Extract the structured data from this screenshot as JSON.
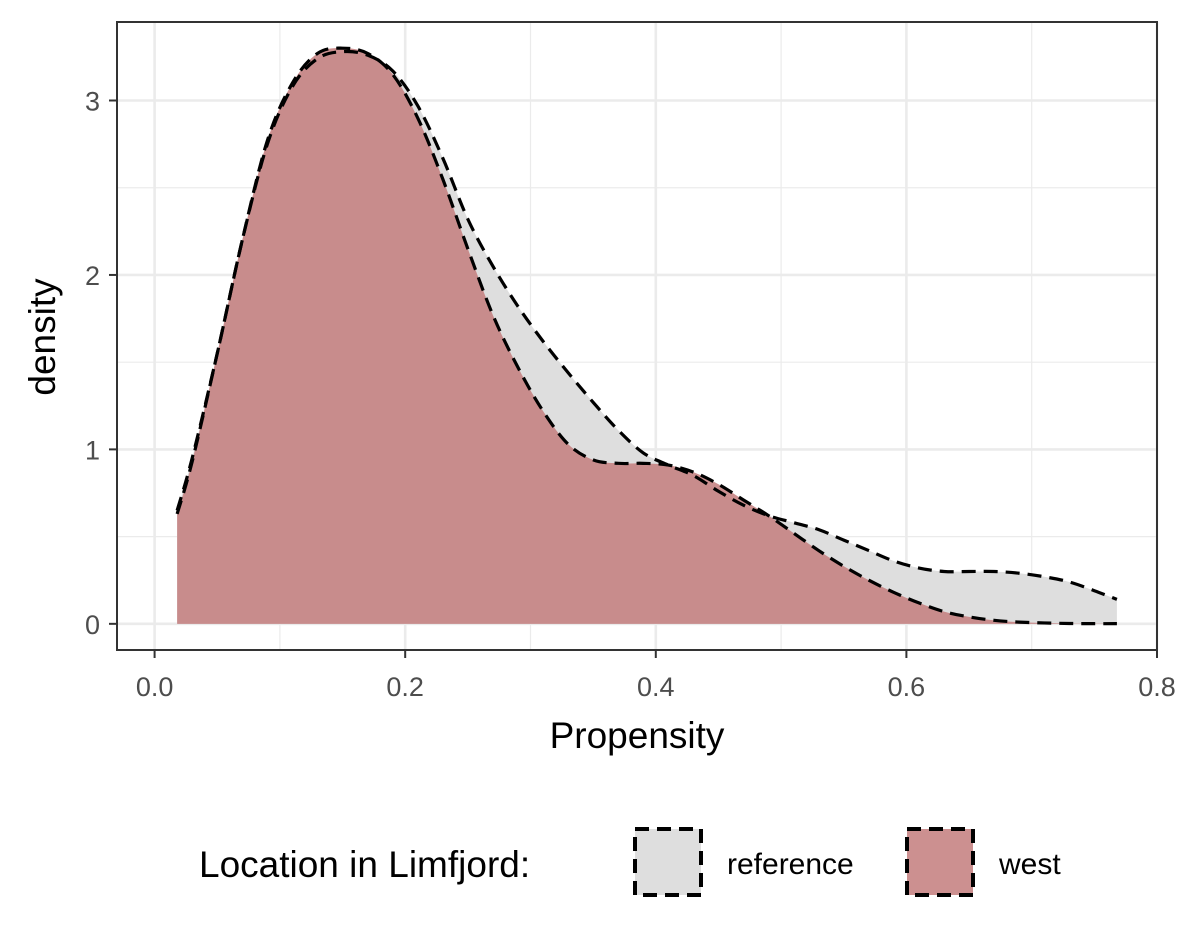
{
  "colors": {
    "reference_fill": "#dedede",
    "west_fill": "#c4807f",
    "grid": "#ebebeb",
    "panel_border": "#333333",
    "outline": "#000000"
  },
  "chart_data": {
    "type": "area",
    "xlabel": "Propensity",
    "ylabel": "density",
    "xlim": [
      -0.03,
      0.8
    ],
    "ylim": [
      -0.15,
      3.45
    ],
    "x_ticks": [
      0.0,
      0.2,
      0.4,
      0.6,
      0.8
    ],
    "x_tick_labels": [
      "0.0",
      "0.2",
      "0.4",
      "0.6",
      "0.8"
    ],
    "y_ticks": [
      0,
      1,
      2,
      3
    ],
    "y_tick_labels": [
      "0",
      "1",
      "2",
      "3"
    ],
    "grid": true,
    "legend": {
      "title": "Location in Limfjord:",
      "position": "bottom"
    },
    "series": [
      {
        "name": "reference",
        "color": "#dedede",
        "x": [
          0.018,
          0.03,
          0.05,
          0.07,
          0.09,
          0.11,
          0.13,
          0.15,
          0.17,
          0.19,
          0.21,
          0.23,
          0.25,
          0.27,
          0.29,
          0.31,
          0.33,
          0.35,
          0.37,
          0.39,
          0.41,
          0.43,
          0.45,
          0.47,
          0.49,
          0.51,
          0.53,
          0.55,
          0.57,
          0.59,
          0.61,
          0.63,
          0.65,
          0.67,
          0.69,
          0.71,
          0.73,
          0.75,
          0.768
        ],
        "y": [
          0.65,
          0.95,
          1.55,
          2.2,
          2.75,
          3.08,
          3.24,
          3.28,
          3.26,
          3.17,
          2.97,
          2.67,
          2.32,
          2.05,
          1.82,
          1.62,
          1.44,
          1.27,
          1.11,
          0.98,
          0.91,
          0.85,
          0.76,
          0.68,
          0.62,
          0.58,
          0.54,
          0.48,
          0.42,
          0.36,
          0.32,
          0.3,
          0.3,
          0.3,
          0.29,
          0.27,
          0.24,
          0.19,
          0.14
        ]
      },
      {
        "name": "west",
        "color": "#c4807f",
        "x": [
          0.018,
          0.03,
          0.05,
          0.07,
          0.09,
          0.11,
          0.13,
          0.15,
          0.17,
          0.19,
          0.21,
          0.23,
          0.25,
          0.27,
          0.29,
          0.31,
          0.33,
          0.35,
          0.37,
          0.39,
          0.41,
          0.43,
          0.45,
          0.47,
          0.49,
          0.51,
          0.53,
          0.55,
          0.57,
          0.59,
          0.61,
          0.63,
          0.65,
          0.67,
          0.69,
          0.71,
          0.73,
          0.75,
          0.768
        ],
        "y": [
          0.63,
          0.93,
          1.55,
          2.2,
          2.77,
          3.1,
          3.27,
          3.3,
          3.27,
          3.15,
          2.9,
          2.55,
          2.15,
          1.77,
          1.47,
          1.22,
          1.03,
          0.94,
          0.92,
          0.92,
          0.91,
          0.87,
          0.8,
          0.71,
          0.62,
          0.52,
          0.42,
          0.33,
          0.25,
          0.18,
          0.12,
          0.07,
          0.04,
          0.02,
          0.01,
          0.005,
          0.002,
          0.001,
          0.001
        ]
      }
    ]
  }
}
